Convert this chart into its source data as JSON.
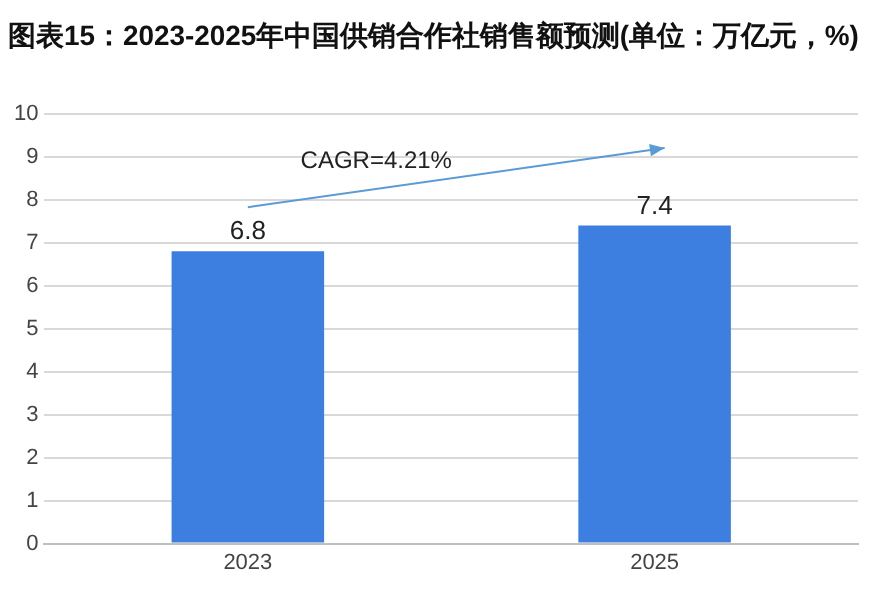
{
  "chart_data": {
    "type": "bar",
    "title": "图表15：2023-2025年中国供销合作社销售额预测(单位：万亿元，%)",
    "categories": [
      "2023",
      "2025"
    ],
    "values": [
      6.8,
      7.4
    ],
    "color": "#3d7fe0",
    "ylim": [
      0,
      10
    ],
    "yticks": [
      0,
      1,
      2,
      3,
      4,
      5,
      6,
      7,
      8,
      9,
      10
    ],
    "grid": "y",
    "data_labels": true,
    "legend": false,
    "annotations": [
      "CAGR=4.21%"
    ]
  }
}
